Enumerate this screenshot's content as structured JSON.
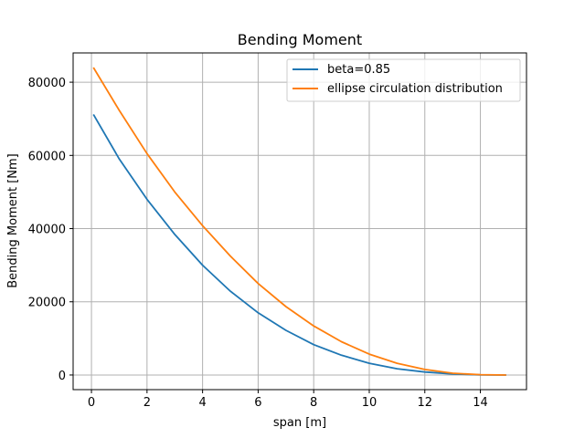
{
  "chart_data": {
    "type": "line",
    "title": "Bending Moment",
    "xlabel": "span [m]",
    "ylabel": "Bending Moment [Nm]",
    "xlim": [
      -0.66,
      15.66
    ],
    "ylim": [
      -4000,
      88000
    ],
    "xticks": [
      0,
      2,
      4,
      6,
      8,
      10,
      12,
      14
    ],
    "yticks": [
      0,
      20000,
      40000,
      60000,
      80000
    ],
    "grid": true,
    "legend_position": "top-right",
    "series": [
      {
        "name": "beta=0.85",
        "color": "#1f77b4",
        "x": [
          0.07,
          1,
          2,
          3,
          4,
          5,
          6,
          7,
          8,
          9,
          10,
          11,
          12,
          13,
          14,
          14.93
        ],
        "y": [
          71200,
          59000,
          48000,
          38400,
          30000,
          22900,
          17000,
          12200,
          8300,
          5400,
          3200,
          1700,
          800,
          300,
          50,
          0
        ]
      },
      {
        "name": "ellipse circulation distribution",
        "color": "#ff7f0e",
        "x": [
          0.07,
          1,
          2,
          3,
          4,
          5,
          6,
          7,
          8,
          9,
          10,
          11,
          12,
          13,
          14,
          14.93
        ],
        "y": [
          84000,
          72300,
          60500,
          50000,
          40800,
          32500,
          25000,
          18700,
          13400,
          9100,
          5700,
          3200,
          1500,
          500,
          80,
          0
        ]
      }
    ]
  }
}
